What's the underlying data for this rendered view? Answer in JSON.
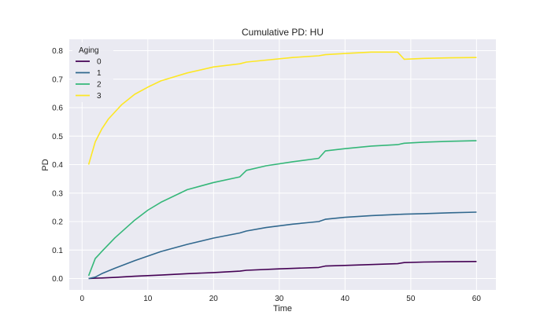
{
  "chart_data": {
    "type": "line",
    "title": "Cumulative PD: HU",
    "xlabel": "Time",
    "ylabel": "PD",
    "xlim": [
      -1.95,
      62.95
    ],
    "ylim": [
      -0.04,
      0.84
    ],
    "xticks": [
      0,
      10,
      20,
      30,
      40,
      50,
      60
    ],
    "yticks": [
      0.0,
      0.1,
      0.2,
      0.3,
      0.4,
      0.5,
      0.6,
      0.7,
      0.8
    ],
    "xtick_labels": [
      "0",
      "10",
      "20",
      "30",
      "40",
      "50",
      "60"
    ],
    "ytick_labels": [
      "0.0",
      "0.1",
      "0.2",
      "0.3",
      "0.4",
      "0.5",
      "0.6",
      "0.7",
      "0.8"
    ],
    "grid": true,
    "legend_title": "Aging",
    "legend_position": "top-left",
    "series": [
      {
        "name": "0",
        "color": "#440154",
        "x": [
          1,
          2,
          3,
          5,
          8,
          12,
          16,
          20,
          24,
          25,
          30,
          36,
          37,
          40,
          44,
          48,
          49,
          52,
          56,
          60
        ],
        "y": [
          0.0,
          0.001,
          0.002,
          0.004,
          0.008,
          0.012,
          0.017,
          0.021,
          0.026,
          0.029,
          0.034,
          0.039,
          0.044,
          0.046,
          0.049,
          0.052,
          0.056,
          0.058,
          0.059,
          0.06
        ]
      },
      {
        "name": "1",
        "color": "#31688e",
        "x": [
          1,
          2,
          3,
          5,
          8,
          12,
          16,
          20,
          24,
          25,
          28,
          32,
          36,
          37,
          40,
          44,
          48,
          49,
          52,
          56,
          60
        ],
        "y": [
          0.0,
          0.005,
          0.017,
          0.036,
          0.063,
          0.095,
          0.12,
          0.142,
          0.16,
          0.167,
          0.179,
          0.191,
          0.2,
          0.208,
          0.215,
          0.221,
          0.225,
          0.226,
          0.228,
          0.231,
          0.233
        ]
      },
      {
        "name": "2",
        "color": "#35b779",
        "x": [
          1,
          2,
          3,
          5,
          8,
          10,
          12,
          16,
          20,
          24,
          25,
          28,
          32,
          36,
          37,
          40,
          44,
          48,
          49,
          52,
          56,
          60
        ],
        "y": [
          0.01,
          0.07,
          0.095,
          0.143,
          0.205,
          0.24,
          0.268,
          0.312,
          0.337,
          0.357,
          0.38,
          0.396,
          0.41,
          0.422,
          0.448,
          0.456,
          0.465,
          0.47,
          0.475,
          0.479,
          0.482,
          0.484
        ]
      },
      {
        "name": "3",
        "color": "#fde725",
        "x": [
          1,
          2,
          3,
          4,
          6,
          8,
          10,
          12,
          16,
          20,
          24,
          25,
          28,
          32,
          36,
          37,
          40,
          44,
          48,
          49,
          52,
          56,
          60
        ],
        "y": [
          0.4,
          0.48,
          0.525,
          0.56,
          0.61,
          0.647,
          0.672,
          0.694,
          0.722,
          0.743,
          0.754,
          0.76,
          0.767,
          0.776,
          0.782,
          0.786,
          0.79,
          0.795,
          0.795,
          0.77,
          0.773,
          0.775,
          0.776
        ]
      }
    ]
  }
}
